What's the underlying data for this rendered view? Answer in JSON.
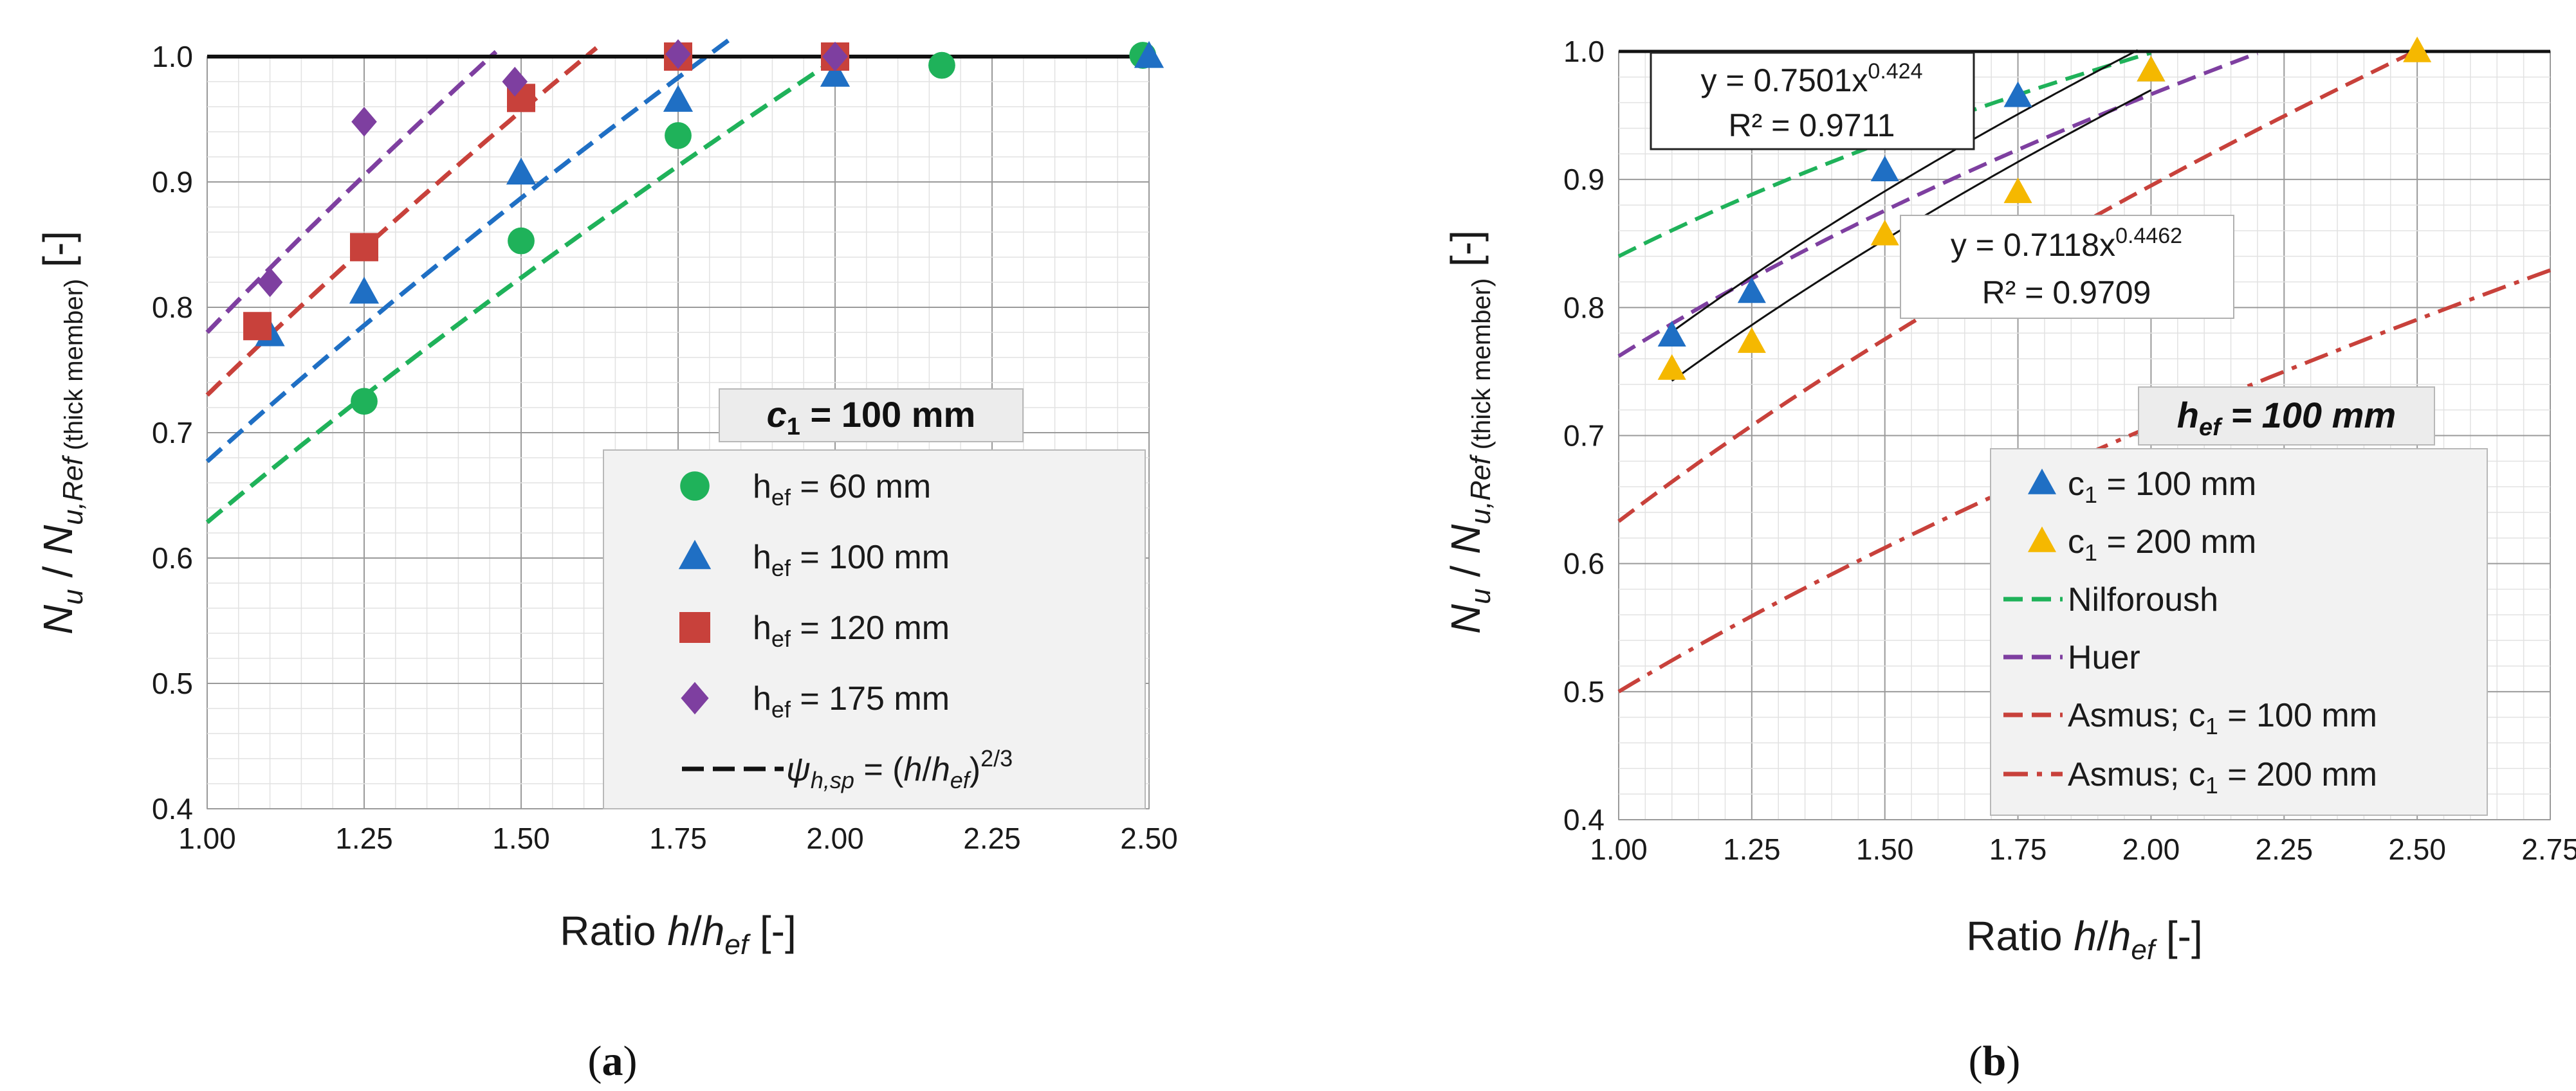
{
  "chart_data": [
    {
      "type": "scatter",
      "panel": "a",
      "caption": {
        "open": "(",
        "letter": "a",
        "close": ")"
      },
      "box_title": {
        "c": "c",
        "sub": "1",
        "rest": " = 100 mm"
      },
      "xlabel": {
        "prefix": "Ratio ",
        "h": "h",
        "slash": "/",
        "hef": "h",
        "hef_sub": "ef",
        "suffix": " [-]"
      },
      "ylabel": {
        "N": "N",
        "sub_u": "u",
        "slash": " / ",
        "N2": "N",
        "sub_ref": "u,Ref",
        "sub_thick": " (thick member)",
        "suffix": " [-]"
      },
      "xlim": [
        1.0,
        2.5
      ],
      "ylim": [
        0.4,
        1.0
      ],
      "xticks": [
        "1.00",
        "1.25",
        "1.50",
        "1.75",
        "2.00",
        "2.25",
        "2.50"
      ],
      "yticks": [
        "0.4",
        "0.5",
        "0.6",
        "0.7",
        "0.8",
        "0.9",
        "1.0"
      ],
      "series": [
        {
          "name": "h",
          "sub": "ef",
          "rest": " = 60 mm",
          "color": "#1fb25a",
          "marker": "circle",
          "x": [
            1.25,
            1.5,
            1.75,
            2.0,
            2.17,
            2.49
          ],
          "y": [
            0.725,
            0.853,
            0.937,
            1.0,
            0.993,
            1.001
          ],
          "trend": {
            "x": [
              1.0,
              2.02
            ],
            "coef": 0.6285,
            "exp": 0.6667
          }
        },
        {
          "name": "h",
          "sub": "ef",
          "rest": " = 100 mm",
          "color": "#1f6fc4",
          "marker": "triangle",
          "x": [
            1.1,
            1.25,
            1.5,
            1.75,
            2.0,
            2.5
          ],
          "y": [
            0.778,
            0.812,
            0.907,
            0.965,
            0.985,
            1.0
          ],
          "trend": {
            "x": [
              1.0,
              1.84
            ],
            "coef": 0.677,
            "exp": 0.6667
          }
        },
        {
          "name": "h",
          "sub": "ef",
          "rest": " = 120 mm",
          "color": "#c8413b",
          "marker": "square",
          "x": [
            1.08,
            1.25,
            1.5,
            1.75,
            2.0
          ],
          "y": [
            0.785,
            0.848,
            0.967,
            1.0,
            1.0
          ],
          "trend": {
            "x": [
              1.0,
              1.62
            ],
            "coef": 0.73,
            "exp": 0.6667
          }
        },
        {
          "name": "h",
          "sub": "ef",
          "rest": " = 175 mm",
          "color": "#7e3fa0",
          "marker": "diamond",
          "x": [
            1.1,
            1.25,
            1.49,
            1.75,
            2.0
          ],
          "y": [
            0.82,
            0.948,
            0.98,
            1.002,
            1.0
          ],
          "trend": {
            "x": [
              1.0,
              1.46
            ],
            "coef": 0.78,
            "exp": 0.6667
          }
        }
      ],
      "reference": {
        "label_psi": "ψ",
        "label_sub": "h,sp",
        "label_eq": " = (",
        "label_h": "h",
        "label_slash": "/",
        "label_hef": "h",
        "label_hef_sub": "ef",
        "label_close": ")",
        "label_exp": "2/3",
        "y": 1.0,
        "color": "#111111"
      }
    },
    {
      "type": "scatter",
      "panel": "b",
      "caption": {
        "open": "(",
        "letter": "b",
        "close": ")"
      },
      "box_title": {
        "h": "h",
        "sub": "ef",
        "rest": " = 100 mm"
      },
      "xlabel": {
        "prefix": "Ratio ",
        "h": "h",
        "slash": "/",
        "hef": "h",
        "hef_sub": "ef",
        "suffix": " [-]"
      },
      "ylabel": {
        "N": "N",
        "sub_u": "u",
        "slash": " / ",
        "N2": "N",
        "sub_ref": "u,Ref",
        "sub_thick": " (thick member)",
        "suffix": " [-]"
      },
      "xlim": [
        1.0,
        2.75
      ],
      "ylim": [
        0.4,
        1.0
      ],
      "xticks": [
        "1.00",
        "1.25",
        "1.50",
        "1.75",
        "2.00",
        "2.25",
        "2.50",
        "2.75"
      ],
      "yticks": [
        "0.4",
        "0.5",
        "0.6",
        "0.7",
        "0.8",
        "0.9",
        "1.0"
      ],
      "series": [
        {
          "name": "c",
          "sub": "1",
          "rest": " = 100 mm",
          "color": "#1f6fc4",
          "marker": "triangle",
          "x": [
            1.1,
            1.25,
            1.5,
            1.75,
            2.0
          ],
          "y": [
            0.778,
            0.812,
            0.907,
            0.965,
            0.985
          ]
        },
        {
          "name": "c",
          "sub": "1",
          "rest": " = 200 mm",
          "color": "#f5b800",
          "marker": "triangle",
          "x": [
            1.1,
            1.25,
            1.5,
            1.75,
            2.0,
            2.5
          ],
          "y": [
            0.752,
            0.773,
            0.857,
            0.89,
            0.985,
            1.0
          ]
        }
      ],
      "curves": [
        {
          "name": "Nilforoush",
          "color": "#1fb25a",
          "dash": "dashed",
          "coef": 0.84,
          "exp": 0.25,
          "x": [
            1.0,
            2.0
          ]
        },
        {
          "name": "Huer",
          "color": "#7e3fa0",
          "dash": "dashed",
          "coef": 0.762,
          "exp": 0.343,
          "x": [
            1.0,
            2.2
          ]
        },
        {
          "name": "Asmus; c",
          "sub": "1",
          "rest": " = 100 mm",
          "color": "#c8413b",
          "dash": "dashed",
          "coef": 0.633,
          "exp": 0.5,
          "x": [
            1.0,
            2.5
          ]
        },
        {
          "name": "Asmus; c",
          "sub": "1",
          "rest": " = 200 mm",
          "color": "#c8413b",
          "dash": "dashdot",
          "coef": 0.5,
          "exp": 0.5,
          "x": [
            1.0,
            2.75
          ]
        }
      ],
      "fits": [
        {
          "eq_prefix": "y = 0.7501x",
          "eq_exp": "0.424",
          "r2": "R² = 0.9711",
          "coef": 0.7501,
          "exp": 0.424,
          "x": [
            1.1,
            1.975
          ]
        },
        {
          "eq_prefix": "y = 0.7118x",
          "eq_exp": "0.4462",
          "r2": "R² = 0.9709",
          "coef": 0.7118,
          "exp": 0.4462,
          "x": [
            1.1,
            2.0
          ]
        }
      ],
      "reference": {
        "y": 1.0,
        "color": "#111111"
      }
    }
  ]
}
